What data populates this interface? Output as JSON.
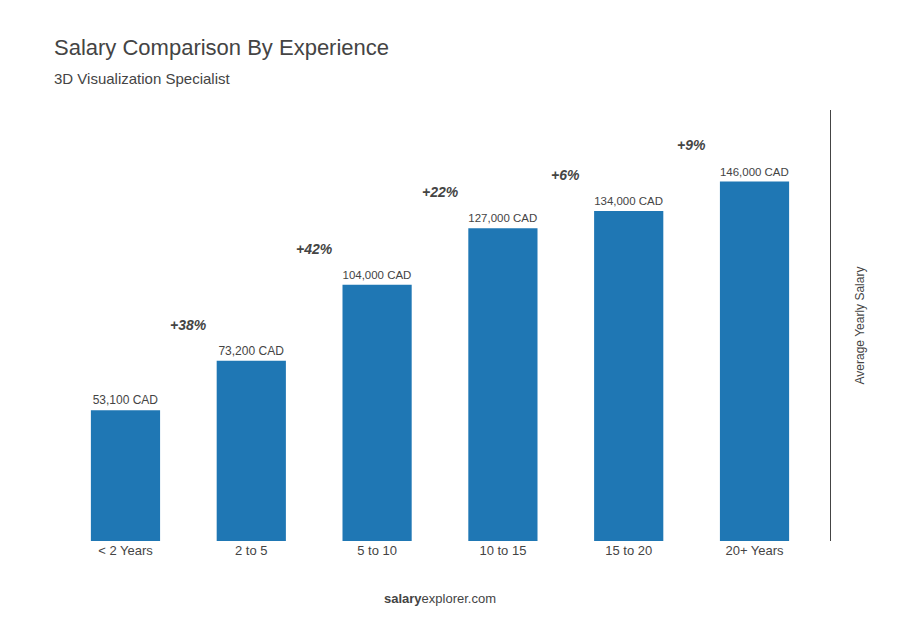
{
  "chart_data": {
    "type": "bar",
    "title": "Salary Comparison By Experience",
    "subtitle": "3D Visualization Specialist",
    "ylabel": "Average Yearly Salary",
    "categories": [
      "< 2 Years",
      "2 to 5",
      "5 to 10",
      "10 to 15",
      "15 to 20",
      "20+ Years"
    ],
    "values": [
      53100,
      73200,
      104000,
      127000,
      134000,
      146000
    ],
    "value_labels": [
      "53,100 CAD",
      "73,200 CAD",
      "104,000 CAD",
      "127,000 CAD",
      "134,000 CAD",
      "146,000 CAD"
    ],
    "data_labels": true,
    "annotations": [
      "+38%",
      "+42%",
      "+22%",
      "+6%",
      "+9%"
    ],
    "watermark": [
      "salary",
      "explorer.com"
    ],
    "ylim": [
      0,
      175000
    ],
    "grid": false,
    "tick_labels": "x"
  }
}
